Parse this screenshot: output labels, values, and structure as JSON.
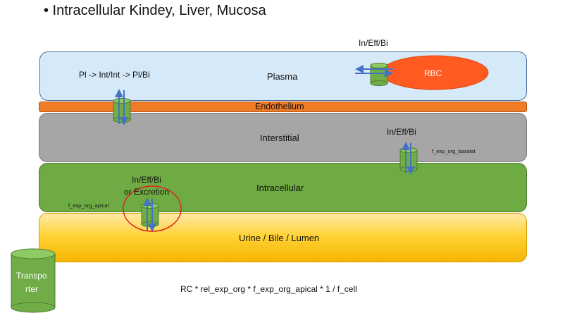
{
  "title": "• Intracellular Kindey, Liver, Mucosa",
  "layers": {
    "plasma": "Plasma",
    "endothelium": "Endothelium",
    "interstitial": "Interstitial",
    "intracellular": "Intracellular",
    "urine": "Urine / Bile / Lumen"
  },
  "rbc_label": "RBC",
  "labels": {
    "rbc_transport": "In/Eff/Bi",
    "plasma_transport": "Pl -> Int/Int -> Pl/Bi",
    "basolateral_transport": "In/Eff/Bi",
    "basolateral_param": "f_exp_org_basolat",
    "apical_transport_line1": "In/Eff/Bi",
    "apical_transport_line2": "or Excretion",
    "apical_param": "f_exp_org_apical"
  },
  "legend": {
    "line1": "Transpo",
    "line2": "rter"
  },
  "formula": "RC * rel_exp_org * f_exp_org_apical * 1 / f_cell",
  "colors": {
    "plasma": "#d6e9f8",
    "endothelium": "#f07b27",
    "interstitial": "#a6a6a6",
    "intracellular": "#6eab43",
    "urine": "#ffd338",
    "rbc": "#ff5a1f",
    "transporter": "#70ad47",
    "arrow": "#4472c4",
    "highlight_circle": "#e02020"
  }
}
